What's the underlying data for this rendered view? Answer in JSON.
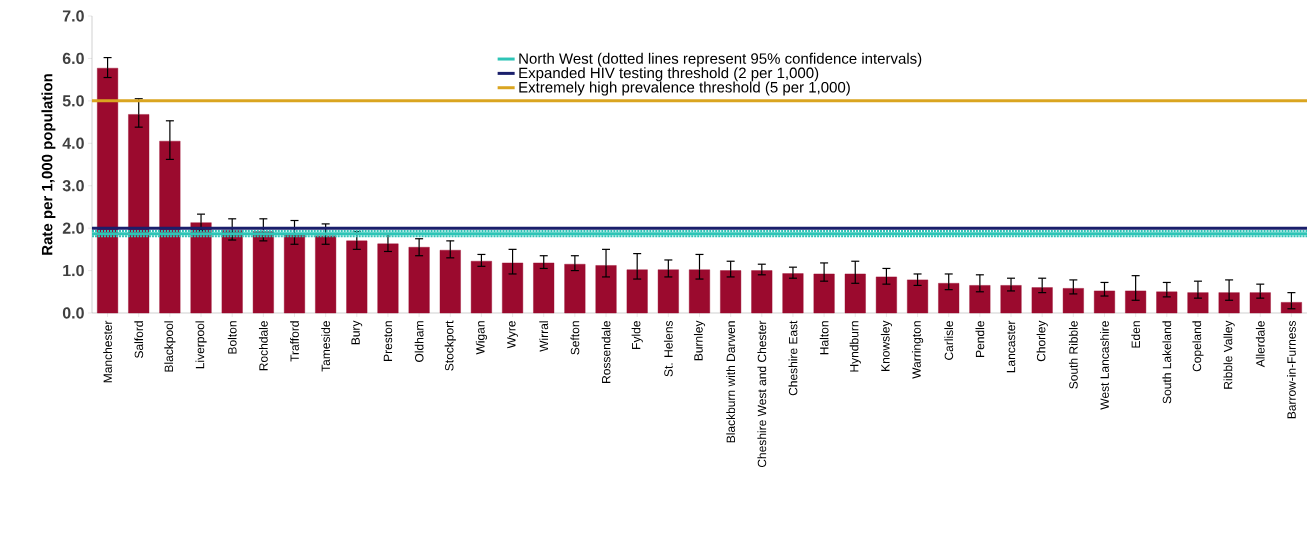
{
  "chart_data": {
    "type": "bar",
    "ylabel": "Rate per 1,000 population",
    "categories": [
      "Manchester",
      "Salford",
      "Blackpool",
      "Liverpool",
      "Bolton",
      "Rochdale",
      "Trafford",
      "Tameside",
      "Bury",
      "Preston",
      "Oldham",
      "Stockport",
      "Wigan",
      "Wyre",
      "Wirral",
      "Sefton",
      "Rossendale",
      "Fylde",
      "St. Helens",
      "Burnley",
      "Blackburn with Darwen",
      "Cheshire West and Chester",
      "Cheshire East",
      "Halton",
      "Hyndburn",
      "Knowsley",
      "Warrington",
      "Carlisle",
      "Pendle",
      "Lancaster",
      "Chorley",
      "South Ribble",
      "West Lancashire",
      "Eden",
      "South Lakeland",
      "Copeland",
      "Ribble Valley",
      "Allerdale",
      "Barrow-in-Furness"
    ],
    "values": [
      5.77,
      4.68,
      4.05,
      2.13,
      1.95,
      1.92,
      1.85,
      1.82,
      1.7,
      1.63,
      1.55,
      1.48,
      1.22,
      1.18,
      1.18,
      1.15,
      1.12,
      1.02,
      1.02,
      1.02,
      1.0,
      1.0,
      0.93,
      0.92,
      0.92,
      0.85,
      0.78,
      0.7,
      0.65,
      0.65,
      0.6,
      0.58,
      0.52,
      0.52,
      0.5,
      0.48,
      0.48,
      0.48,
      0.25
    ],
    "errors": [
      [
        5.55,
        6.02
      ],
      [
        4.38,
        5.05
      ],
      [
        3.62,
        4.53
      ],
      [
        1.95,
        2.33
      ],
      [
        1.72,
        2.22
      ],
      [
        1.7,
        2.22
      ],
      [
        1.62,
        2.18
      ],
      [
        1.62,
        2.1
      ],
      [
        1.5,
        1.92
      ],
      [
        1.45,
        1.85
      ],
      [
        1.35,
        1.75
      ],
      [
        1.3,
        1.7
      ],
      [
        1.1,
        1.38
      ],
      [
        0.92,
        1.5
      ],
      [
        1.05,
        1.35
      ],
      [
        1.0,
        1.35
      ],
      [
        0.85,
        1.5
      ],
      [
        0.8,
        1.4
      ],
      [
        0.85,
        1.25
      ],
      [
        0.8,
        1.38
      ],
      [
        0.85,
        1.22
      ],
      [
        0.9,
        1.15
      ],
      [
        0.82,
        1.08
      ],
      [
        0.75,
        1.18
      ],
      [
        0.7,
        1.22
      ],
      [
        0.68,
        1.05
      ],
      [
        0.65,
        0.92
      ],
      [
        0.55,
        0.92
      ],
      [
        0.5,
        0.9
      ],
      [
        0.52,
        0.82
      ],
      [
        0.48,
        0.82
      ],
      [
        0.45,
        0.78
      ],
      [
        0.4,
        0.72
      ],
      [
        0.3,
        0.88
      ],
      [
        0.38,
        0.72
      ],
      [
        0.35,
        0.75
      ],
      [
        0.3,
        0.78
      ],
      [
        0.35,
        0.68
      ],
      [
        0.1,
        0.48
      ]
    ],
    "color": "#9b0a2e",
    "ylim": [
      0,
      7
    ],
    "yticks": [
      {
        "value": 0,
        "label": "0.0"
      },
      {
        "value": 1,
        "label": "1.0"
      },
      {
        "value": 2,
        "label": "2.0"
      },
      {
        "value": 3,
        "label": "3.0"
      },
      {
        "value": 4,
        "label": "4.0"
      },
      {
        "value": 5,
        "label": "5.0"
      },
      {
        "value": 6,
        "label": "6.0"
      },
      {
        "value": 7,
        "label": "7.0"
      }
    ],
    "ref_lines": [
      {
        "axis": "y",
        "value": 1.87,
        "label": "North West (dotted lines represent 95% confidence intervals)",
        "color": "#2ec4b6"
      },
      {
        "axis": "y",
        "value": 2.0,
        "label": "Expanded HIV testing threshold (2 per 1,000)",
        "color": "#1a1f6b"
      },
      {
        "axis": "y",
        "value": 5.0,
        "label": "Extremely high prevalence threshold (5 per 1,000)",
        "color": "#daa520"
      },
      {
        "axis": "y",
        "value": 1.81,
        "color": "#2ec4b6",
        "line_style": "dotted"
      },
      {
        "axis": "y",
        "value": 1.93,
        "color": "#2ec4b6",
        "line_style": "dotted"
      }
    ],
    "legend": "top right",
    "grid": false
  }
}
